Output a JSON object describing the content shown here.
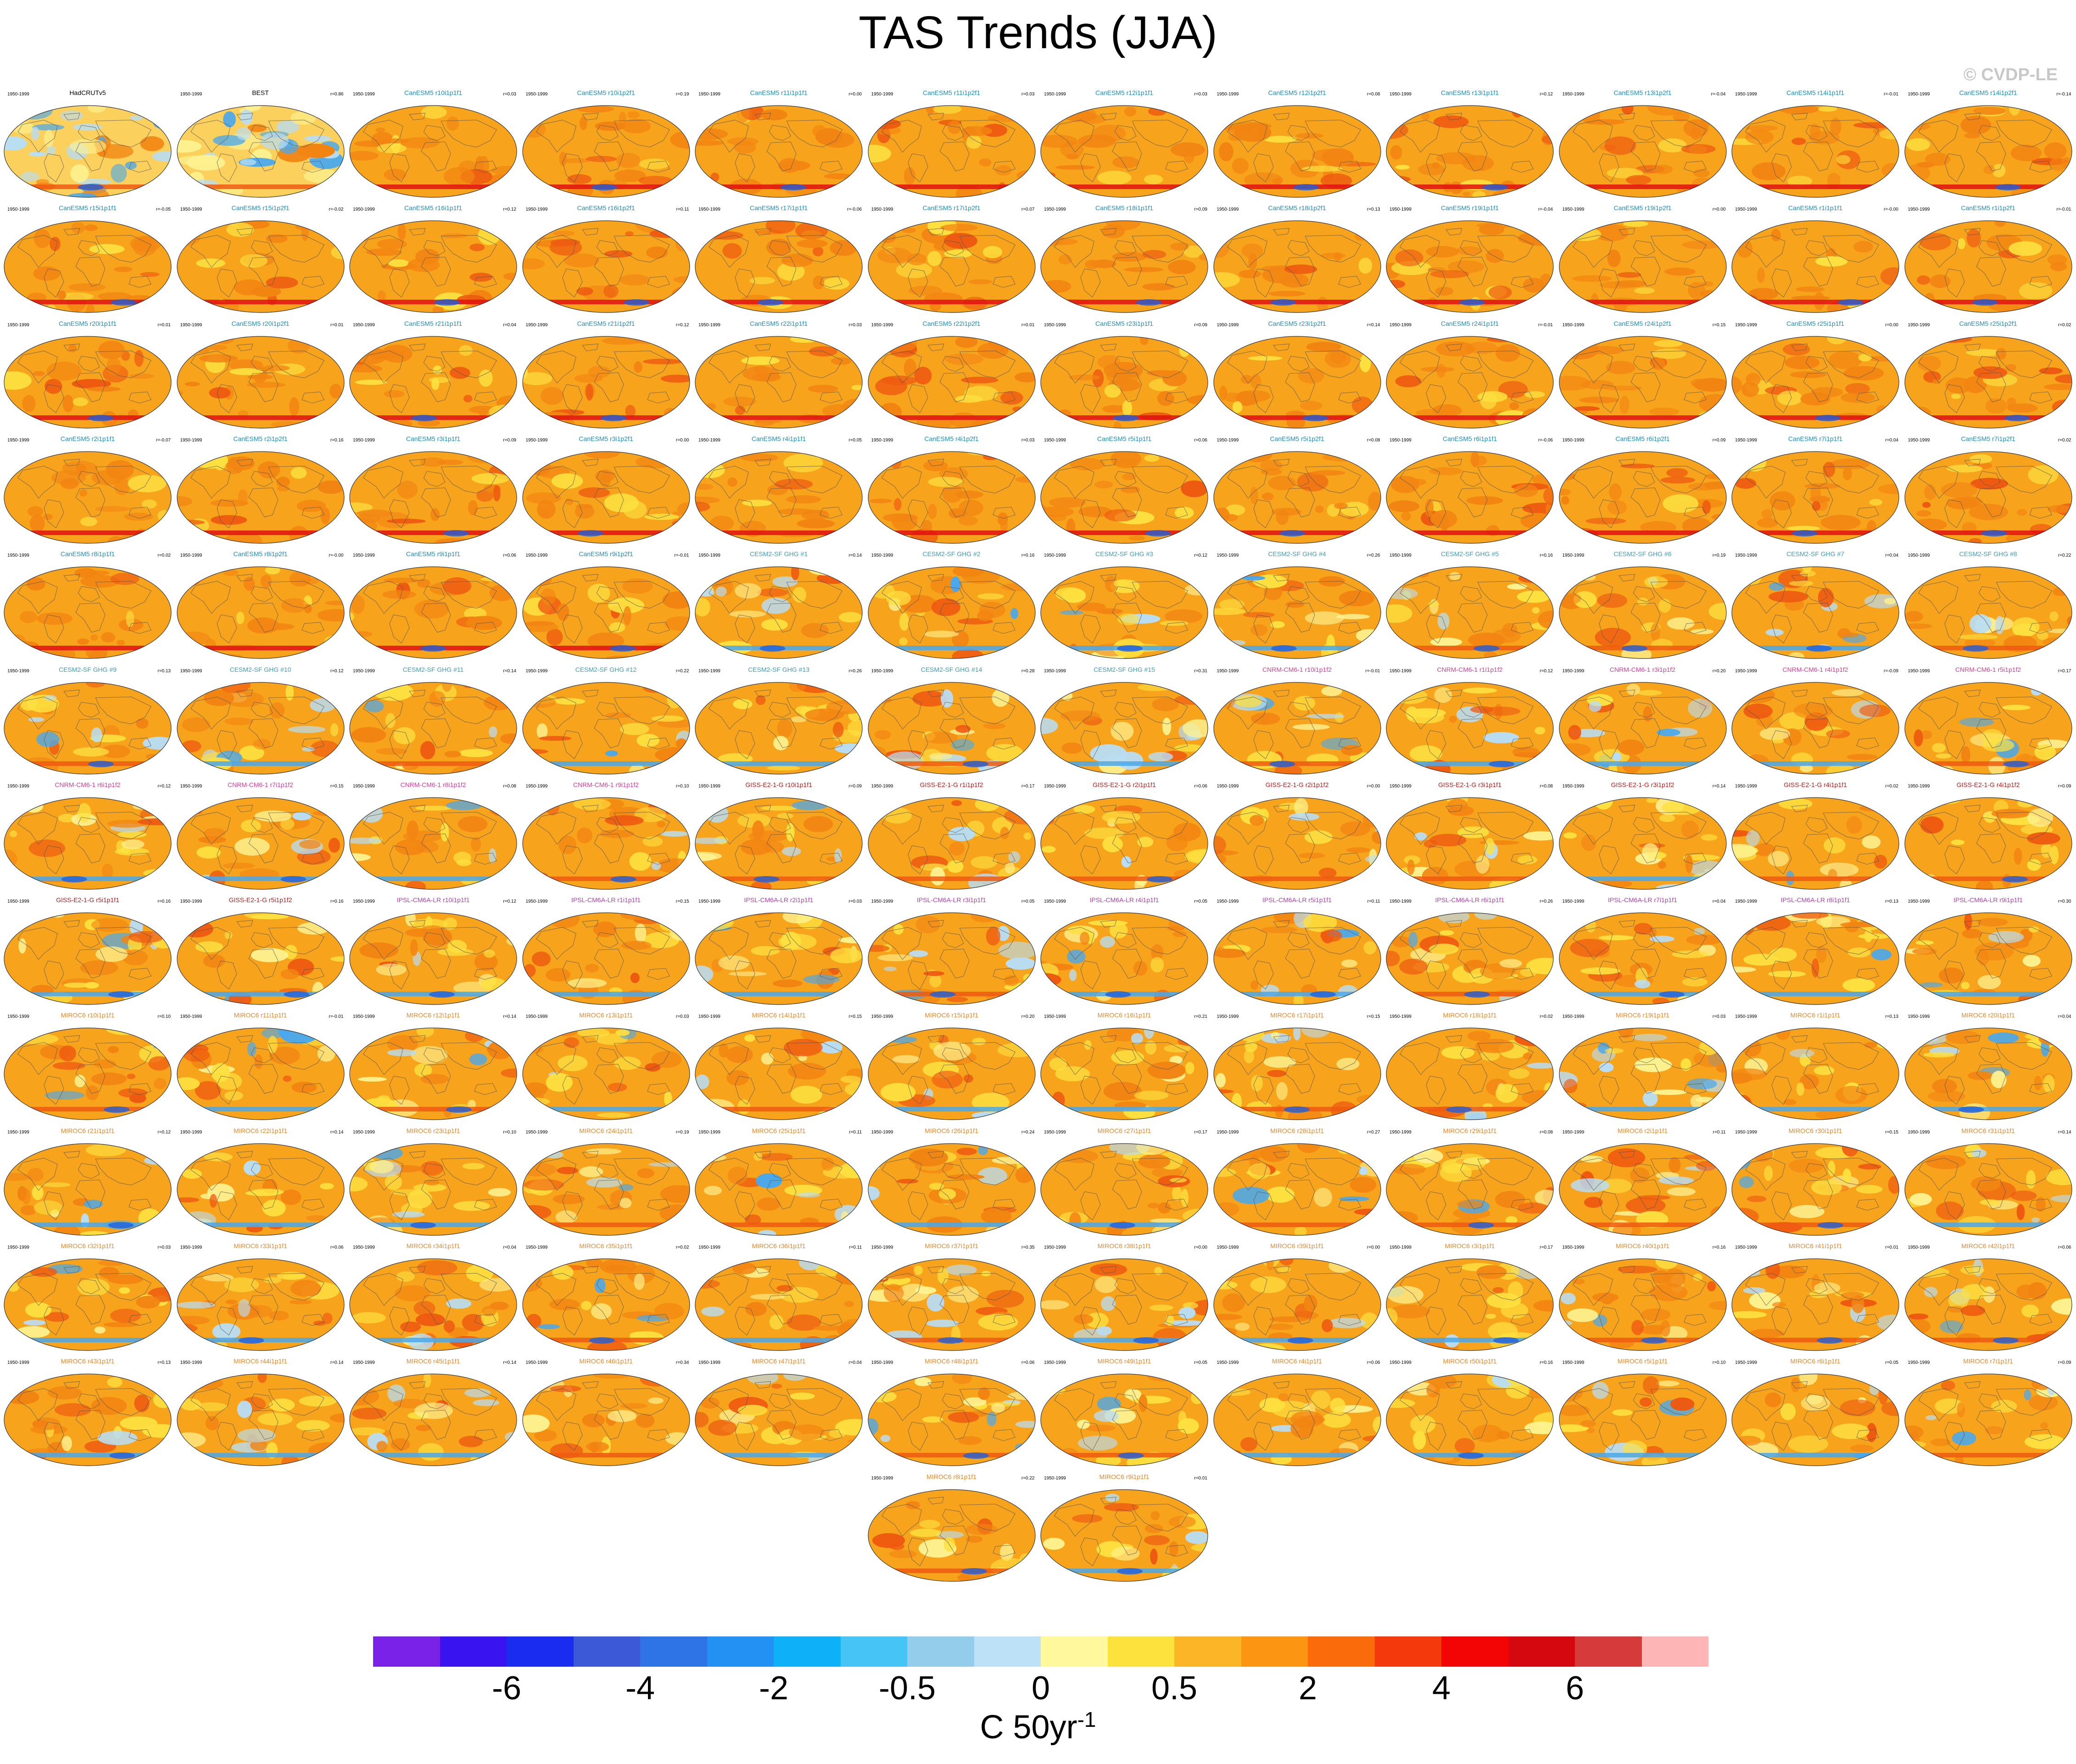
{
  "title": "TAS Trends (JJA)",
  "watermark": "© CVDP-LE",
  "period": "1950-1999",
  "name_colors": {
    "obs": "#000000",
    "canesm": "#1a8fb8",
    "cesm": "#3a9fb8",
    "cnrm": "#d0409a",
    "giss": "#b02020",
    "ipsl": "#b040b0",
    "miroc": "#e08a30"
  },
  "palette": {
    "base": "#f7a41c",
    "orange": "#f28512",
    "deep": "#ee5a10",
    "red": "#e01010",
    "yellow": "#fde040",
    "pale": "#fdf290",
    "lightblue": "#b8ddf4",
    "blue": "#4aa8ec",
    "darkblue": "#2060d8",
    "ocean_edge": "#555555"
  },
  "panels": [
    {
      "name": "HadCRUTv5",
      "r": "",
      "group": "obs",
      "row": 0,
      "col": 0
    },
    {
      "name": "BEST",
      "r": "r=0.86",
      "group": "obs",
      "row": 0,
      "col": 1
    },
    {
      "name": "CanESM5 r10i1p1f1",
      "r": "r=0.03",
      "group": "canesm",
      "row": 0,
      "col": 2
    },
    {
      "name": "CanESM5 r10i1p2f1",
      "r": "r=0.19",
      "group": "canesm",
      "row": 0,
      "col": 3
    },
    {
      "name": "CanESM5 r11i1p1f1",
      "r": "r=0.00",
      "group": "canesm",
      "row": 0,
      "col": 4
    },
    {
      "name": "CanESM5 r11i1p2f1",
      "r": "r=0.03",
      "group": "canesm",
      "row": 0,
      "col": 5
    },
    {
      "name": "CanESM5 r12i1p1f1",
      "r": "r=0.03",
      "group": "canesm",
      "row": 0,
      "col": 6
    },
    {
      "name": "CanESM5 r12i1p2f1",
      "r": "r=0.08",
      "group": "canesm",
      "row": 0,
      "col": 7
    },
    {
      "name": "CanESM5 r13i1p1f1",
      "r": "r=0.12",
      "group": "canesm",
      "row": 0,
      "col": 8
    },
    {
      "name": "CanESM5 r13i1p2f1",
      "r": "r=-0.04",
      "group": "canesm",
      "row": 0,
      "col": 9
    },
    {
      "name": "CanESM5 r14i1p1f1",
      "r": "r=-0.01",
      "group": "canesm",
      "row": 0,
      "col": 10
    },
    {
      "name": "CanESM5 r14i1p2f1",
      "r": "r=-0.14",
      "group": "canesm",
      "row": 0,
      "col": 11
    },
    {
      "name": "CanESM5 r15i1p1f1",
      "r": "r=-0.05",
      "group": "canesm",
      "row": 1,
      "col": 0
    },
    {
      "name": "CanESM5 r15i1p2f1",
      "r": "r=-0.02",
      "group": "canesm",
      "row": 1,
      "col": 1
    },
    {
      "name": "CanESM5 r16i1p1f1",
      "r": "r=0.12",
      "group": "canesm",
      "row": 1,
      "col": 2
    },
    {
      "name": "CanESM5 r16i1p2f1",
      "r": "r=0.11",
      "group": "canesm",
      "row": 1,
      "col": 3
    },
    {
      "name": "CanESM5 r17i1p1f1",
      "r": "r=-0.06",
      "group": "canesm",
      "row": 1,
      "col": 4
    },
    {
      "name": "CanESM5 r17i1p2f1",
      "r": "r=0.07",
      "group": "canesm",
      "row": 1,
      "col": 5
    },
    {
      "name": "CanESM5 r18i1p1f1",
      "r": "r=0.09",
      "group": "canesm",
      "row": 1,
      "col": 6
    },
    {
      "name": "CanESM5 r18i1p2f1",
      "r": "r=0.13",
      "group": "canesm",
      "row": 1,
      "col": 7
    },
    {
      "name": "CanESM5 r19i1p1f1",
      "r": "r=-0.04",
      "group": "canesm",
      "row": 1,
      "col": 8
    },
    {
      "name": "CanESM5 r19i1p2f1",
      "r": "r=0.00",
      "group": "canesm",
      "row": 1,
      "col": 9
    },
    {
      "name": "CanESM5 r1i1p1f1",
      "r": "r=-0.00",
      "group": "canesm",
      "row": 1,
      "col": 10
    },
    {
      "name": "CanESM5 r1i1p2f1",
      "r": "r=-0.01",
      "group": "canesm",
      "row": 1,
      "col": 11
    },
    {
      "name": "CanESM5 r20i1p1f1",
      "r": "r=0.01",
      "group": "canesm",
      "row": 2,
      "col": 0
    },
    {
      "name": "CanESM5 r20i1p2f1",
      "r": "r=0.01",
      "group": "canesm",
      "row": 2,
      "col": 1
    },
    {
      "name": "CanESM5 r21i1p1f1",
      "r": "r=0.04",
      "group": "canesm",
      "row": 2,
      "col": 2
    },
    {
      "name": "CanESM5 r21i1p2f1",
      "r": "r=0.12",
      "group": "canesm",
      "row": 2,
      "col": 3
    },
    {
      "name": "CanESM5 r22i1p1f1",
      "r": "r=0.03",
      "group": "canesm",
      "row": 2,
      "col": 4
    },
    {
      "name": "CanESM5 r22i1p2f1",
      "r": "r=0.01",
      "group": "canesm",
      "row": 2,
      "col": 5
    },
    {
      "name": "CanESM5 r23i1p1f1",
      "r": "r=0.09",
      "group": "canesm",
      "row": 2,
      "col": 6
    },
    {
      "name": "CanESM5 r23i1p2f1",
      "r": "r=0.14",
      "group": "canesm",
      "row": 2,
      "col": 7
    },
    {
      "name": "CanESM5 r24i1p1f1",
      "r": "r=-0.01",
      "group": "canesm",
      "row": 2,
      "col": 8
    },
    {
      "name": "CanESM5 r24i1p2f1",
      "r": "r=0.15",
      "group": "canesm",
      "row": 2,
      "col": 9
    },
    {
      "name": "CanESM5 r25i1p1f1",
      "r": "r=0.00",
      "group": "canesm",
      "row": 2,
      "col": 10
    },
    {
      "name": "CanESM5 r25i1p2f1",
      "r": "r=0.02",
      "group": "canesm",
      "row": 2,
      "col": 11
    },
    {
      "name": "CanESM5 r2i1p1f1",
      "r": "r=-0.07",
      "group": "canesm",
      "row": 3,
      "col": 0
    },
    {
      "name": "CanESM5 r2i1p2f1",
      "r": "r=0.16",
      "group": "canesm",
      "row": 3,
      "col": 1
    },
    {
      "name": "CanESM5 r3i1p1f1",
      "r": "r=0.09",
      "group": "canesm",
      "row": 3,
      "col": 2
    },
    {
      "name": "CanESM5 r3i1p2f1",
      "r": "r=0.00",
      "group": "canesm",
      "row": 3,
      "col": 3
    },
    {
      "name": "CanESM5 r4i1p1f1",
      "r": "r=0.05",
      "group": "canesm",
      "row": 3,
      "col": 4
    },
    {
      "name": "CanESM5 r4i1p2f1",
      "r": "r=0.03",
      "group": "canesm",
      "row": 3,
      "col": 5
    },
    {
      "name": "CanESM5 r5i1p1f1",
      "r": "r=0.06",
      "group": "canesm",
      "row": 3,
      "col": 6
    },
    {
      "name": "CanESM5 r5i1p2f1",
      "r": "r=0.08",
      "group": "canesm",
      "row": 3,
      "col": 7
    },
    {
      "name": "CanESM5 r6i1p1f1",
      "r": "r=-0.06",
      "group": "canesm",
      "row": 3,
      "col": 8
    },
    {
      "name": "CanESM5 r6i1p2f1",
      "r": "r=0.09",
      "group": "canesm",
      "row": 3,
      "col": 9
    },
    {
      "name": "CanESM5 r7i1p1f1",
      "r": "r=0.04",
      "group": "canesm",
      "row": 3,
      "col": 10
    },
    {
      "name": "CanESM5 r7i1p2f1",
      "r": "r=0.02",
      "group": "canesm",
      "row": 3,
      "col": 11
    },
    {
      "name": "CanESM5 r8i1p1f1",
      "r": "r=0.02",
      "group": "canesm",
      "row": 4,
      "col": 0
    },
    {
      "name": "CanESM5 r8i1p2f1",
      "r": "r=-0.00",
      "group": "canesm",
      "row": 4,
      "col": 1
    },
    {
      "name": "CanESM5 r9i1p1f1",
      "r": "r=0.06",
      "group": "canesm",
      "row": 4,
      "col": 2
    },
    {
      "name": "CanESM5 r9i1p2f1",
      "r": "r=-0.01",
      "group": "canesm",
      "row": 4,
      "col": 3
    },
    {
      "name": "CESM2-SF GHG #1",
      "r": "r=0.14",
      "group": "cesm",
      "row": 4,
      "col": 4
    },
    {
      "name": "CESM2-SF GHG #2",
      "r": "r=0.16",
      "group": "cesm",
      "row": 4,
      "col": 5
    },
    {
      "name": "CESM2-SF GHG #3",
      "r": "r=0.12",
      "group": "cesm",
      "row": 4,
      "col": 6
    },
    {
      "name": "CESM2-SF GHG #4",
      "r": "r=0.26",
      "group": "cesm",
      "row": 4,
      "col": 7
    },
    {
      "name": "CESM2-SF GHG #5",
      "r": "r=0.16",
      "group": "cesm",
      "row": 4,
      "col": 8
    },
    {
      "name": "CESM2-SF GHG #6",
      "r": "r=0.19",
      "group": "cesm",
      "row": 4,
      "col": 9
    },
    {
      "name": "CESM2-SF GHG #7",
      "r": "r=0.04",
      "group": "cesm",
      "row": 4,
      "col": 10
    },
    {
      "name": "CESM2-SF GHG #8",
      "r": "r=0.22",
      "group": "cesm",
      "row": 4,
      "col": 11
    },
    {
      "name": "CESM2-SF GHG #9",
      "r": "r=0.13",
      "group": "cesm",
      "row": 5,
      "col": 0
    },
    {
      "name": "CESM2-SF GHG #10",
      "r": "r=0.12",
      "group": "cesm",
      "row": 5,
      "col": 1
    },
    {
      "name": "CESM2-SF GHG #11",
      "r": "r=0.14",
      "group": "cesm",
      "row": 5,
      "col": 2
    },
    {
      "name": "CESM2-SF GHG #12",
      "r": "r=0.22",
      "group": "cesm",
      "row": 5,
      "col": 3
    },
    {
      "name": "CESM2-SF GHG #13",
      "r": "r=0.26",
      "group": "cesm",
      "row": 5,
      "col": 4
    },
    {
      "name": "CESM2-SF GHG #14",
      "r": "r=0.28",
      "group": "cesm",
      "row": 5,
      "col": 5
    },
    {
      "name": "CESM2-SF GHG #15",
      "r": "r=0.31",
      "group": "cesm",
      "row": 5,
      "col": 6
    },
    {
      "name": "CNRM-CM6-1 r10i1p1f2",
      "r": "r=-0.01",
      "group": "cnrm",
      "row": 5,
      "col": 7
    },
    {
      "name": "CNRM-CM6-1 r1i1p1f2",
      "r": "r=0.12",
      "group": "cnrm",
      "row": 5,
      "col": 8
    },
    {
      "name": "CNRM-CM6-1 r3i1p1f2",
      "r": "r=0.20",
      "group": "cnrm",
      "row": 5,
      "col": 9
    },
    {
      "name": "CNRM-CM6-1 r4i1p1f2",
      "r": "r=-0.09",
      "group": "cnrm",
      "row": 5,
      "col": 10
    },
    {
      "name": "CNRM-CM6-1 r5i1p1f2",
      "r": "r=0.17",
      "group": "cnrm",
      "row": 5,
      "col": 11
    },
    {
      "name": "CNRM-CM6-1 r6i1p1f2",
      "r": "r=0.12",
      "group": "cnrm",
      "row": 6,
      "col": 0
    },
    {
      "name": "CNRM-CM6-1 r7i1p1f2",
      "r": "r=0.15",
      "group": "cnrm",
      "row": 6,
      "col": 1
    },
    {
      "name": "CNRM-CM6-1 r8i1p1f2",
      "r": "r=0.08",
      "group": "cnrm",
      "row": 6,
      "col": 2
    },
    {
      "name": "CNRM-CM6-1 r9i1p1f2",
      "r": "r=0.10",
      "group": "cnrm",
      "row": 6,
      "col": 3
    },
    {
      "name": "GISS-E2-1-G r10i1p1f1",
      "r": "r=0.09",
      "group": "giss",
      "row": 6,
      "col": 4
    },
    {
      "name": "GISS-E2-1-G r1i1p1f2",
      "r": "r=0.17",
      "group": "giss",
      "row": 6,
      "col": 5
    },
    {
      "name": "GISS-E2-1-G r2i1p1f1",
      "r": "r=0.06",
      "group": "giss",
      "row": 6,
      "col": 6
    },
    {
      "name": "GISS-E2-1-G r2i1p1f2",
      "r": "r=0.00",
      "group": "giss",
      "row": 6,
      "col": 7
    },
    {
      "name": "GISS-E2-1-G r3i1p1f1",
      "r": "r=0.08",
      "group": "giss",
      "row": 6,
      "col": 8
    },
    {
      "name": "GISS-E2-1-G r3i1p1f2",
      "r": "r=0.14",
      "group": "giss",
      "row": 6,
      "col": 9
    },
    {
      "name": "GISS-E2-1-G r4i1p1f1",
      "r": "r=0.02",
      "group": "giss",
      "row": 6,
      "col": 10
    },
    {
      "name": "GISS-E2-1-G r4i1p1f2",
      "r": "r=0.09",
      "group": "giss",
      "row": 6,
      "col": 11
    },
    {
      "name": "GISS-E2-1-G r5i1p1f1",
      "r": "r=0.16",
      "group": "giss",
      "row": 7,
      "col": 0
    },
    {
      "name": "GISS-E2-1-G r5i1p1f2",
      "r": "r=0.16",
      "group": "giss",
      "row": 7,
      "col": 1
    },
    {
      "name": "IPSL-CM6A-LR r10i1p1f1",
      "r": "r=0.12",
      "group": "ipsl",
      "row": 7,
      "col": 2
    },
    {
      "name": "IPSL-CM6A-LR r1i1p1f1",
      "r": "r=0.15",
      "group": "ipsl",
      "row": 7,
      "col": 3
    },
    {
      "name": "IPSL-CM6A-LR r2i1p1f1",
      "r": "r=0.03",
      "group": "ipsl",
      "row": 7,
      "col": 4
    },
    {
      "name": "IPSL-CM6A-LR r3i1p1f1",
      "r": "r=0.05",
      "group": "ipsl",
      "row": 7,
      "col": 5
    },
    {
      "name": "IPSL-CM6A-LR r4i1p1f1",
      "r": "r=0.05",
      "group": "ipsl",
      "row": 7,
      "col": 6
    },
    {
      "name": "IPSL-CM6A-LR r5i1p1f1",
      "r": "r=0.11",
      "group": "ipsl",
      "row": 7,
      "col": 7
    },
    {
      "name": "IPSL-CM6A-LR r6i1p1f1",
      "r": "r=0.26",
      "group": "ipsl",
      "row": 7,
      "col": 8
    },
    {
      "name": "IPSL-CM6A-LR r7i1p1f1",
      "r": "r=0.04",
      "group": "ipsl",
      "row": 7,
      "col": 9
    },
    {
      "name": "IPSL-CM6A-LR r8i1p1f1",
      "r": "r=0.13",
      "group": "ipsl",
      "row": 7,
      "col": 10
    },
    {
      "name": "IPSL-CM6A-LR r9i1p1f1",
      "r": "r=0.30",
      "group": "ipsl",
      "row": 7,
      "col": 11
    },
    {
      "name": "MIROC6 r10i1p1f1",
      "r": "r=0.10",
      "group": "miroc",
      "row": 8,
      "col": 0
    },
    {
      "name": "MIROC6 r11i1p1f1",
      "r": "r=-0.01",
      "group": "miroc",
      "row": 8,
      "col": 1
    },
    {
      "name": "MIROC6 r12i1p1f1",
      "r": "r=0.14",
      "group": "miroc",
      "row": 8,
      "col": 2
    },
    {
      "name": "MIROC6 r13i1p1f1",
      "r": "r=0.03",
      "group": "miroc",
      "row": 8,
      "col": 3
    },
    {
      "name": "MIROC6 r14i1p1f1",
      "r": "r=0.15",
      "group": "miroc",
      "row": 8,
      "col": 4
    },
    {
      "name": "MIROC6 r15i1p1f1",
      "r": "r=0.20",
      "group": "miroc",
      "row": 8,
      "col": 5
    },
    {
      "name": "MIROC6 r16i1p1f1",
      "r": "r=0.21",
      "group": "miroc",
      "row": 8,
      "col": 6
    },
    {
      "name": "MIROC6 r17i1p1f1",
      "r": "r=0.15",
      "group": "miroc",
      "row": 8,
      "col": 7
    },
    {
      "name": "MIROC6 r18i1p1f1",
      "r": "r=0.02",
      "group": "miroc",
      "row": 8,
      "col": 8
    },
    {
      "name": "MIROC6 r19i1p1f1",
      "r": "r=0.03",
      "group": "miroc",
      "row": 8,
      "col": 9
    },
    {
      "name": "MIROC6 r1i1p1f1",
      "r": "r=0.13",
      "group": "miroc",
      "row": 8,
      "col": 10
    },
    {
      "name": "MIROC6 r20i1p1f1",
      "r": "r=0.04",
      "group": "miroc",
      "row": 8,
      "col": 11
    },
    {
      "name": "MIROC6 r21i1p1f1",
      "r": "r=0.12",
      "group": "miroc",
      "row": 9,
      "col": 0
    },
    {
      "name": "MIROC6 r22i1p1f1",
      "r": "r=0.14",
      "group": "miroc",
      "row": 9,
      "col": 1
    },
    {
      "name": "MIROC6 r23i1p1f1",
      "r": "r=0.10",
      "group": "miroc",
      "row": 9,
      "col": 2
    },
    {
      "name": "MIROC6 r24i1p1f1",
      "r": "r=0.19",
      "group": "miroc",
      "row": 9,
      "col": 3
    },
    {
      "name": "MIROC6 r25i1p1f1",
      "r": "r=0.11",
      "group": "miroc",
      "row": 9,
      "col": 4
    },
    {
      "name": "MIROC6 r26i1p1f1",
      "r": "r=0.24",
      "group": "miroc",
      "row": 9,
      "col": 5
    },
    {
      "name": "MIROC6 r27i1p1f1",
      "r": "r=0.17",
      "group": "miroc",
      "row": 9,
      "col": 6
    },
    {
      "name": "MIROC6 r28i1p1f1",
      "r": "r=0.27",
      "group": "miroc",
      "row": 9,
      "col": 7
    },
    {
      "name": "MIROC6 r29i1p1f1",
      "r": "r=0.08",
      "group": "miroc",
      "row": 9,
      "col": 8
    },
    {
      "name": "MIROC6 r2i1p1f1",
      "r": "r=0.11",
      "group": "miroc",
      "row": 9,
      "col": 9
    },
    {
      "name": "MIROC6 r30i1p1f1",
      "r": "r=0.15",
      "group": "miroc",
      "row": 9,
      "col": 10
    },
    {
      "name": "MIROC6 r31i1p1f1",
      "r": "r=0.14",
      "group": "miroc",
      "row": 9,
      "col": 11
    },
    {
      "name": "MIROC6 r32i1p1f1",
      "r": "r=0.03",
      "group": "miroc",
      "row": 10,
      "col": 0
    },
    {
      "name": "MIROC6 r33i1p1f1",
      "r": "r=0.06",
      "group": "miroc",
      "row": 10,
      "col": 1
    },
    {
      "name": "MIROC6 r34i1p1f1",
      "r": "r=0.04",
      "group": "miroc",
      "row": 10,
      "col": 2
    },
    {
      "name": "MIROC6 r35i1p1f1",
      "r": "r=0.02",
      "group": "miroc",
      "row": 10,
      "col": 3
    },
    {
      "name": "MIROC6 r36i1p1f1",
      "r": "r=0.11",
      "group": "miroc",
      "row": 10,
      "col": 4
    },
    {
      "name": "MIROC6 r37i1p1f1",
      "r": "r=0.35",
      "group": "miroc",
      "row": 10,
      "col": 5
    },
    {
      "name": "MIROC6 r38i1p1f1",
      "r": "r=0.00",
      "group": "miroc",
      "row": 10,
      "col": 6
    },
    {
      "name": "MIROC6 r39i1p1f1",
      "r": "r=0.00",
      "group": "miroc",
      "row": 10,
      "col": 7
    },
    {
      "name": "MIROC6 r3i1p1f1",
      "r": "r=0.17",
      "group": "miroc",
      "row": 10,
      "col": 8
    },
    {
      "name": "MIROC6 r40i1p1f1",
      "r": "r=0.16",
      "group": "miroc",
      "row": 10,
      "col": 9
    },
    {
      "name": "MIROC6 r41i1p1f1",
      "r": "r=0.01",
      "group": "miroc",
      "row": 10,
      "col": 10
    },
    {
      "name": "MIROC6 r42i1p1f1",
      "r": "r=0.06",
      "group": "miroc",
      "row": 10,
      "col": 11
    },
    {
      "name": "MIROC6 r43i1p1f1",
      "r": "r=0.13",
      "group": "miroc",
      "row": 11,
      "col": 0
    },
    {
      "name": "MIROC6 r44i1p1f1",
      "r": "r=0.14",
      "group": "miroc",
      "row": 11,
      "col": 1
    },
    {
      "name": "MIROC6 r45i1p1f1",
      "r": "r=0.14",
      "group": "miroc",
      "row": 11,
      "col": 2
    },
    {
      "name": "MIROC6 r46i1p1f1",
      "r": "r=0.34",
      "group": "miroc",
      "row": 11,
      "col": 3
    },
    {
      "name": "MIROC6 r47i1p1f1",
      "r": "r=0.04",
      "group": "miroc",
      "row": 11,
      "col": 4
    },
    {
      "name": "MIROC6 r48i1p1f1",
      "r": "r=0.06",
      "group": "miroc",
      "row": 11,
      "col": 5
    },
    {
      "name": "MIROC6 r49i1p1f1",
      "r": "r=0.05",
      "group": "miroc",
      "row": 11,
      "col": 6
    },
    {
      "name": "MIROC6 r4i1p1f1",
      "r": "r=0.06",
      "group": "miroc",
      "row": 11,
      "col": 7
    },
    {
      "name": "MIROC6 r50i1p1f1",
      "r": "r=0.16",
      "group": "miroc",
      "row": 11,
      "col": 8
    },
    {
      "name": "MIROC6 r5i1p1f1",
      "r": "r=0.10",
      "group": "miroc",
      "row": 11,
      "col": 9
    },
    {
      "name": "MIROC6 r6i1p1f1",
      "r": "r=0.05",
      "group": "miroc",
      "row": 11,
      "col": 10
    },
    {
      "name": "MIROC6 r7i1p1f1",
      "r": "r=0.09",
      "group": "miroc",
      "row": 11,
      "col": 11
    },
    {
      "name": "MIROC6 r8i1p1f1",
      "r": "r=0.22",
      "group": "miroc",
      "row": 12,
      "col": 5
    },
    {
      "name": "MIROC6 r9i1p1f1",
      "r": "r=0.01",
      "group": "miroc",
      "row": 12,
      "col": 6
    }
  ],
  "colorbar": {
    "colors": [
      "#7a22e8",
      "#3a14f0",
      "#1a2cf0",
      "#3c5ad8",
      "#2f74e6",
      "#2390f4",
      "#0eb0f8",
      "#46c4f6",
      "#94cdeb",
      "#bde1f6",
      "#fff89c",
      "#fde13c",
      "#fbb526",
      "#fb9512",
      "#fa6b0c",
      "#f43a0c",
      "#f40505",
      "#d4080e",
      "#d63a3a",
      "#fdb5b5"
    ],
    "tick_labels": [
      "-6",
      "-4",
      "-2",
      "-0.5",
      "0",
      "0.5",
      "2",
      "4",
      "6"
    ],
    "units": "C 50yr",
    "units_exponent": "-1"
  }
}
